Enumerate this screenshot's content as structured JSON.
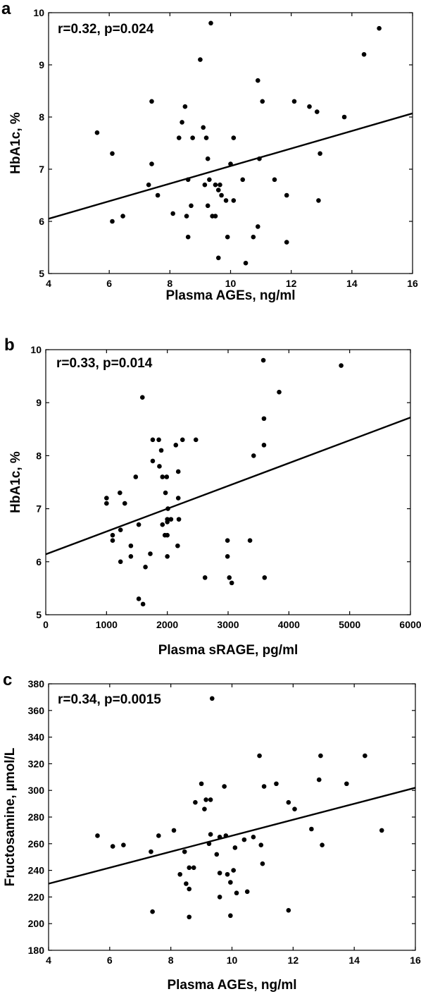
{
  "chart_data": [
    {
      "panel": "a",
      "type": "scatter",
      "annotation": "r=0.32, p=0.024",
      "xlabel": "Plasma AGEs, ng/ml",
      "ylabel": "HbA1c, %",
      "xlim": [
        4,
        16
      ],
      "ylim": [
        5,
        10
      ],
      "xticks": [
        4,
        6,
        8,
        10,
        12,
        14,
        16
      ],
      "yticks": [
        5,
        6,
        7,
        8,
        9,
        10
      ],
      "grid": false,
      "points": [
        [
          5.6,
          7.7
        ],
        [
          6.1,
          7.3
        ],
        [
          6.1,
          6.0
        ],
        [
          6.45,
          6.1
        ],
        [
          7.3,
          6.7
        ],
        [
          7.4,
          8.3
        ],
        [
          7.4,
          7.1
        ],
        [
          7.6,
          6.5
        ],
        [
          8.1,
          6.15
        ],
        [
          8.3,
          7.6
        ],
        [
          8.4,
          7.9
        ],
        [
          8.5,
          8.2
        ],
        [
          8.6,
          6.8
        ],
        [
          8.55,
          6.1
        ],
        [
          8.6,
          5.7
        ],
        [
          8.7,
          6.3
        ],
        [
          8.75,
          7.6
        ],
        [
          9.0,
          9.1
        ],
        [
          9.1,
          7.8
        ],
        [
          9.15,
          6.7
        ],
        [
          9.2,
          7.6
        ],
        [
          9.25,
          7.2
        ],
        [
          9.25,
          6.3
        ],
        [
          9.3,
          6.8
        ],
        [
          9.35,
          9.8
        ],
        [
          9.4,
          6.1
        ],
        [
          9.5,
          6.1
        ],
        [
          9.5,
          6.7
        ],
        [
          9.6,
          6.6
        ],
        [
          9.6,
          5.3
        ],
        [
          9.65,
          6.7
        ],
        [
          9.7,
          6.5
        ],
        [
          9.85,
          6.4
        ],
        [
          9.9,
          5.7
        ],
        [
          10.0,
          7.1
        ],
        [
          10.1,
          7.6
        ],
        [
          10.1,
          6.4
        ],
        [
          10.4,
          6.8
        ],
        [
          10.5,
          5.2
        ],
        [
          10.75,
          5.7
        ],
        [
          10.9,
          8.7
        ],
        [
          10.9,
          5.9
        ],
        [
          10.95,
          7.2
        ],
        [
          11.05,
          8.3
        ],
        [
          11.45,
          6.8
        ],
        [
          11.85,
          6.5
        ],
        [
          11.85,
          5.6
        ],
        [
          12.1,
          8.3
        ],
        [
          12.6,
          8.2
        ],
        [
          12.85,
          8.1
        ],
        [
          12.9,
          6.4
        ],
        [
          12.95,
          7.3
        ],
        [
          13.75,
          8.0
        ],
        [
          14.4,
          9.2
        ],
        [
          14.9,
          9.7
        ]
      ],
      "fit_line": [
        [
          4,
          6.05
        ],
        [
          16,
          8.07
        ]
      ]
    },
    {
      "panel": "b",
      "type": "scatter",
      "annotation": "r=0.33, p=0.014",
      "xlabel": "Plasma sRAGE, pg/ml",
      "ylabel": "HbA1c, %",
      "xlim": [
        0,
        6000
      ],
      "ylim": [
        5,
        10
      ],
      "xticks": [
        0,
        1000,
        2000,
        3000,
        4000,
        5000,
        6000
      ],
      "yticks": [
        5,
        6,
        7,
        8,
        9,
        10
      ],
      "grid": false,
      "points": [
        [
          1000,
          7.2
        ],
        [
          1000,
          7.1
        ],
        [
          1100,
          6.5
        ],
        [
          1100,
          6.4
        ],
        [
          1220,
          7.3
        ],
        [
          1230,
          6.6
        ],
        [
          1230,
          6.0
        ],
        [
          1300,
          7.1
        ],
        [
          1400,
          6.3
        ],
        [
          1400,
          6.1
        ],
        [
          1480,
          7.6
        ],
        [
          1530,
          6.7
        ],
        [
          1530,
          5.3
        ],
        [
          1590,
          9.1
        ],
        [
          1600,
          5.2
        ],
        [
          1640,
          5.9
        ],
        [
          1720,
          6.15
        ],
        [
          1760,
          8.3
        ],
        [
          1760,
          7.9
        ],
        [
          1860,
          8.3
        ],
        [
          1870,
          7.8
        ],
        [
          1900,
          8.1
        ],
        [
          1920,
          7.6
        ],
        [
          1920,
          6.7
        ],
        [
          1960,
          6.5
        ],
        [
          1970,
          7.3
        ],
        [
          1990,
          7.6
        ],
        [
          2000,
          6.8
        ],
        [
          2000,
          6.75
        ],
        [
          2000,
          6.5
        ],
        [
          2000,
          6.1
        ],
        [
          2010,
          7.0
        ],
        [
          2060,
          6.8
        ],
        [
          2140,
          8.2
        ],
        [
          2170,
          6.3
        ],
        [
          2180,
          7.7
        ],
        [
          2180,
          7.2
        ],
        [
          2190,
          6.8
        ],
        [
          2250,
          8.3
        ],
        [
          2470,
          8.3
        ],
        [
          2620,
          5.7
        ],
        [
          2990,
          6.4
        ],
        [
          2990,
          6.1
        ],
        [
          3020,
          5.7
        ],
        [
          3060,
          5.6
        ],
        [
          3360,
          6.4
        ],
        [
          3420,
          8.0
        ],
        [
          3580,
          9.8
        ],
        [
          3590,
          8.7
        ],
        [
          3590,
          8.2
        ],
        [
          3600,
          5.7
        ],
        [
          3840,
          9.2
        ],
        [
          4860,
          9.7
        ]
      ],
      "fit_line": [
        [
          0,
          6.14
        ],
        [
          6000,
          8.72
        ]
      ]
    },
    {
      "panel": "c",
      "type": "scatter",
      "annotation": "r=0.34, p=0.0015",
      "xlabel": "Plasma AGEs, ng/ml",
      "ylabel": "Fructosamine, µmol/L",
      "xlim": [
        4,
        16
      ],
      "ylim": [
        180,
        380
      ],
      "xticks": [
        4,
        6,
        8,
        10,
        12,
        14,
        16
      ],
      "yticks": [
        180,
        200,
        220,
        240,
        260,
        280,
        300,
        320,
        340,
        360,
        380
      ],
      "grid": false,
      "points": [
        [
          5.6,
          266
        ],
        [
          6.1,
          258
        ],
        [
          6.45,
          259
        ],
        [
          7.35,
          254
        ],
        [
          7.4,
          209
        ],
        [
          7.6,
          266
        ],
        [
          8.1,
          270
        ],
        [
          8.3,
          237
        ],
        [
          8.45,
          254
        ],
        [
          8.5,
          230
        ],
        [
          8.6,
          242
        ],
        [
          8.6,
          226
        ],
        [
          8.6,
          205
        ],
        [
          8.75,
          242
        ],
        [
          8.8,
          291
        ],
        [
          9.0,
          305
        ],
        [
          9.1,
          286
        ],
        [
          9.15,
          293
        ],
        [
          9.25,
          260
        ],
        [
          9.3,
          293
        ],
        [
          9.3,
          267
        ],
        [
          9.35,
          369
        ],
        [
          9.5,
          252
        ],
        [
          9.6,
          265
        ],
        [
          9.6,
          238
        ],
        [
          9.6,
          220
        ],
        [
          9.75,
          303
        ],
        [
          9.8,
          266
        ],
        [
          9.85,
          237
        ],
        [
          9.95,
          231
        ],
        [
          9.95,
          206
        ],
        [
          10.05,
          240
        ],
        [
          10.1,
          257
        ],
        [
          10.15,
          223
        ],
        [
          10.4,
          263
        ],
        [
          10.5,
          224
        ],
        [
          10.7,
          265
        ],
        [
          10.9,
          326
        ],
        [
          10.95,
          259
        ],
        [
          11.0,
          245
        ],
        [
          11.05,
          303
        ],
        [
          11.45,
          305
        ],
        [
          11.85,
          291
        ],
        [
          11.85,
          210
        ],
        [
          12.05,
          286
        ],
        [
          12.6,
          271
        ],
        [
          12.85,
          308
        ],
        [
          12.9,
          326
        ],
        [
          12.95,
          259
        ],
        [
          13.75,
          305
        ],
        [
          14.35,
          326
        ],
        [
          14.9,
          270
        ]
      ],
      "fit_line": [
        [
          4,
          230
        ],
        [
          16,
          302
        ]
      ]
    }
  ]
}
